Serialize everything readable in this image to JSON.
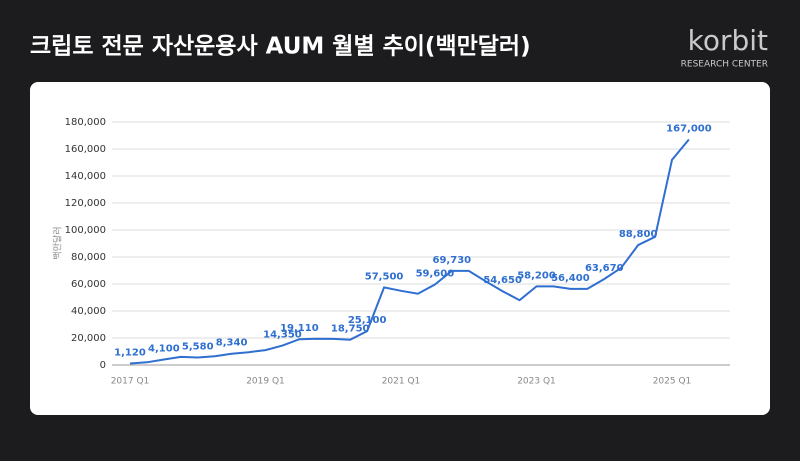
{
  "header": {
    "title": "크립토 전문 자산운용사 AUM 월별 추이(백만달러)",
    "logo": "korbit",
    "logo_sub": "RESEARCH CENTER"
  },
  "chart_data": {
    "type": "line",
    "y_label": "백만달러",
    "color": "#2f6fd0",
    "grid": true,
    "categories": [
      "2017 Q1",
      null,
      null,
      null,
      null,
      null,
      null,
      null,
      "2019 Q1",
      null,
      null,
      null,
      null,
      null,
      null,
      null,
      "2021 Q1",
      null,
      null,
      null,
      null,
      null,
      null,
      null,
      "2023 Q1",
      null,
      null,
      null,
      null,
      null,
      null,
      null,
      "2025 Q1",
      null
    ],
    "values": [
      1120,
      2000,
      4100,
      6000,
      5580,
      6500,
      8340,
      9500,
      11000,
      14350,
      19110,
      19500,
      19300,
      18750,
      25100,
      57500,
      55000,
      52800,
      59600,
      69730,
      69730,
      62000,
      54650,
      48000,
      58200,
      58200,
      56400,
      56400,
      63670,
      72000,
      88800,
      95000,
      152000,
      167000
    ],
    "value_labels": [
      "1,120",
      null,
      "4,100",
      null,
      "5,580",
      null,
      "8,340",
      null,
      null,
      "14,350",
      "19,110",
      null,
      null,
      "18,750",
      "25,100",
      "57,500",
      null,
      null,
      "59,600",
      "69,730",
      null,
      null,
      "54,650",
      null,
      "58,200",
      null,
      "56,400",
      null,
      "63,670",
      null,
      "88,800",
      null,
      null,
      "167,000"
    ],
    "ylim": [
      0,
      180000
    ],
    "yticks": [
      0,
      {
        "value": 20000,
        "label": "20,000"
      },
      {
        "value": 40000,
        "label": "40,000"
      },
      {
        "value": 60000,
        "label": "60,000"
      },
      {
        "value": 80000,
        "label": "80,000"
      },
      {
        "value": 100000,
        "label": "100,000"
      },
      {
        "value": 120000,
        "label": "120,000"
      },
      {
        "value": 140000,
        "label": "140,000"
      },
      {
        "value": 160000,
        "label": "160,000"
      },
      {
        "value": 180000,
        "label": "180,000"
      }
    ]
  }
}
